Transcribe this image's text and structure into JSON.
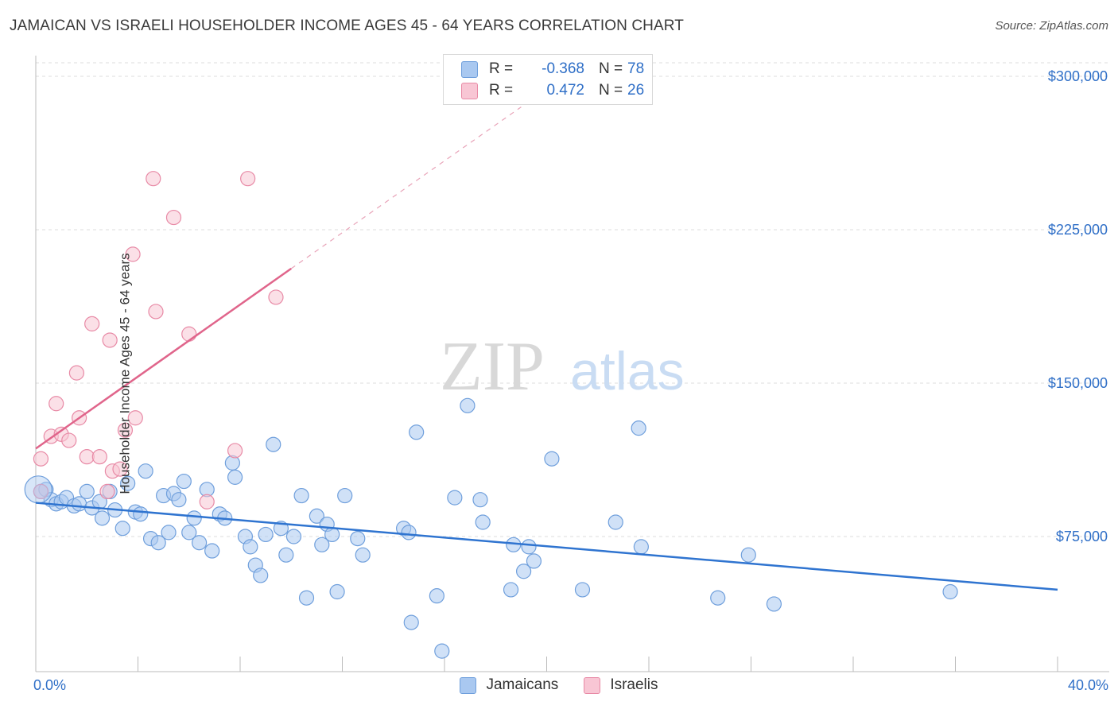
{
  "title": "JAMAICAN VS ISRAELI HOUSEHOLDER INCOME AGES 45 - 64 YEARS CORRELATION CHART",
  "source": "Source: ZipAtlas.com",
  "watermark": {
    "zip": "ZIP",
    "atlas": "atlas"
  },
  "legend_top": {
    "rows": [
      {
        "r_label": "R =",
        "r_value": "-0.368",
        "n_label": "N =",
        "n_value": "78",
        "color": "#a9c8f0",
        "border": "#6f9fdc"
      },
      {
        "r_label": "R =",
        "r_value": "0.472",
        "n_label": "N =",
        "n_value": "26",
        "color": "#f8c6d4",
        "border": "#e88aa6"
      }
    ]
  },
  "legend_bottom": [
    {
      "label": "Jamaicans",
      "color": "#a9c8f0",
      "border": "#6f9fdc"
    },
    {
      "label": "Israelis",
      "color": "#f8c6d4",
      "border": "#e88aa6"
    }
  ],
  "chart_data": {
    "type": "scatter",
    "ylabel": "Householder Income Ages 45 - 64 years",
    "xlim": [
      0,
      40
    ],
    "ylim": [
      0,
      310000
    ],
    "x_tick_labels": [
      "0.0%",
      "40.0%"
    ],
    "y_ticks": [
      75000,
      150000,
      225000,
      300000
    ],
    "y_tick_labels": [
      "$75,000",
      "$150,000",
      "$225,000",
      "$300,000"
    ],
    "grid": true,
    "series": [
      {
        "name": "Jamaicans",
        "color": "#a9c8f0",
        "stroke": "#6f9fdc",
        "trend": {
          "x0": 0.0,
          "y0": 91500,
          "x1": 40.0,
          "y1": 49000,
          "color": "#2f74d0"
        },
        "points": [
          [
            0.2,
            97000
          ],
          [
            0.4,
            98000
          ],
          [
            0.6,
            93000
          ],
          [
            0.8,
            91000
          ],
          [
            1.0,
            92000
          ],
          [
            1.2,
            94000
          ],
          [
            1.5,
            90000
          ],
          [
            1.7,
            91000
          ],
          [
            2.0,
            97000
          ],
          [
            2.2,
            89000
          ],
          [
            2.5,
            92000
          ],
          [
            2.6,
            84000
          ],
          [
            2.9,
            97000
          ],
          [
            3.1,
            88000
          ],
          [
            3.4,
            79000
          ],
          [
            3.6,
            101000
          ],
          [
            3.9,
            87000
          ],
          [
            4.1,
            86000
          ],
          [
            4.3,
            107000
          ],
          [
            4.5,
            74000
          ],
          [
            4.8,
            72000
          ],
          [
            5.0,
            95000
          ],
          [
            5.2,
            77000
          ],
          [
            5.4,
            96000
          ],
          [
            5.6,
            93000
          ],
          [
            5.8,
            102000
          ],
          [
            6.0,
            77000
          ],
          [
            6.2,
            84000
          ],
          [
            6.4,
            72000
          ],
          [
            6.7,
            98000
          ],
          [
            6.9,
            68000
          ],
          [
            7.2,
            86000
          ],
          [
            7.4,
            84000
          ],
          [
            7.7,
            111000
          ],
          [
            7.8,
            104000
          ],
          [
            8.2,
            75000
          ],
          [
            8.4,
            70000
          ],
          [
            8.6,
            61000
          ],
          [
            8.8,
            56000
          ],
          [
            9.0,
            76000
          ],
          [
            9.3,
            120000
          ],
          [
            9.6,
            79000
          ],
          [
            9.8,
            66000
          ],
          [
            10.1,
            75000
          ],
          [
            10.4,
            95000
          ],
          [
            10.6,
            45000
          ],
          [
            11.0,
            85000
          ],
          [
            11.2,
            71000
          ],
          [
            11.4,
            81000
          ],
          [
            11.6,
            76000
          ],
          [
            11.8,
            48000
          ],
          [
            12.1,
            95000
          ],
          [
            12.6,
            74000
          ],
          [
            12.8,
            66000
          ],
          [
            14.4,
            79000
          ],
          [
            14.6,
            77000
          ],
          [
            14.7,
            33000
          ],
          [
            14.9,
            126000
          ],
          [
            15.7,
            46000
          ],
          [
            15.9,
            19000
          ],
          [
            16.4,
            94000
          ],
          [
            16.9,
            139000
          ],
          [
            17.4,
            93000
          ],
          [
            17.5,
            82000
          ],
          [
            18.6,
            49000
          ],
          [
            18.7,
            71000
          ],
          [
            19.1,
            58000
          ],
          [
            19.3,
            70000
          ],
          [
            19.5,
            63000
          ],
          [
            20.2,
            113000
          ],
          [
            21.4,
            49000
          ],
          [
            22.7,
            82000
          ],
          [
            23.6,
            128000
          ],
          [
            23.7,
            70000
          ],
          [
            26.7,
            45000
          ],
          [
            27.9,
            66000
          ],
          [
            28.9,
            42000
          ],
          [
            35.8,
            48000
          ]
        ]
      },
      {
        "name": "Israelis",
        "color": "#f8c6d4",
        "stroke": "#e88aa6",
        "trend": {
          "x0": 0.0,
          "y0": 118000,
          "x1": 10.0,
          "y1": 206000,
          "x2": 19.0,
          "y2": 285000,
          "color": "#e0658b"
        },
        "points": [
          [
            0.2,
            113000
          ],
          [
            0.6,
            124000
          ],
          [
            0.8,
            140000
          ],
          [
            1.0,
            125000
          ],
          [
            1.3,
            122000
          ],
          [
            1.6,
            155000
          ],
          [
            1.7,
            133000
          ],
          [
            2.0,
            114000
          ],
          [
            2.2,
            179000
          ],
          [
            2.5,
            114000
          ],
          [
            2.8,
            97000
          ],
          [
            2.9,
            171000
          ],
          [
            3.0,
            107000
          ],
          [
            3.3,
            108000
          ],
          [
            3.5,
            127000
          ],
          [
            3.8,
            213000
          ],
          [
            3.9,
            133000
          ],
          [
            4.6,
            250000
          ],
          [
            4.7,
            185000
          ],
          [
            5.4,
            231000
          ],
          [
            6.0,
            174000
          ],
          [
            6.7,
            92000
          ],
          [
            7.8,
            117000
          ],
          [
            8.3,
            250000
          ],
          [
            9.4,
            192000
          ],
          [
            0.2,
            97000
          ]
        ]
      }
    ]
  }
}
